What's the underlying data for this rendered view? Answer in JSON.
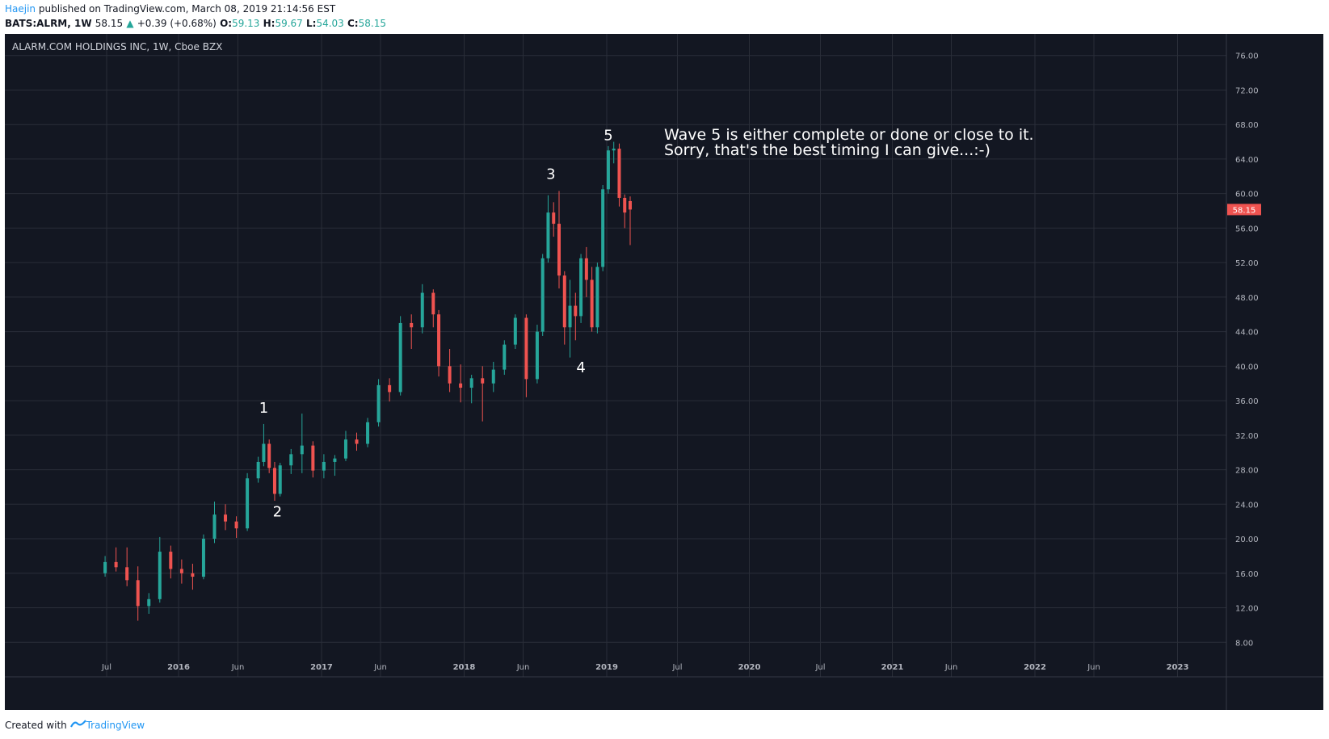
{
  "header": {
    "author": "Haejin",
    "published_text": " published on TradingView.com, March 08, 2019 21:14:56 EST",
    "symbol": "BATS:ALRM, 1W",
    "last": "58.15",
    "change_arrow": "▲",
    "change": "+0.39 (+0.68%)",
    "o_label": "O:",
    "o_value": "59.13",
    "h_label": "H:",
    "h_value": "59.67",
    "l_label": "L:",
    "l_value": "54.03",
    "c_label": "C:",
    "c_value": "58.15"
  },
  "footer": {
    "created_with": "Created with",
    "brand": "TradingView"
  },
  "colors": {
    "background": "#131722",
    "grid": "#2a2e39",
    "up": "#26a69a",
    "down": "#ef5350",
    "text": "#ffffff",
    "axis_text": "#b2b5be",
    "last_price_bg": "#ef5350"
  },
  "chart_data": {
    "type": "candlestick",
    "title": "ALARM.COM HOLDINGS INC, 1W, Cboe BZX",
    "x_tick_labels": [
      "Jul",
      "2016",
      "Jun",
      "2017",
      "Jun",
      "2018",
      "Jun",
      "2019",
      "Jul",
      "2020",
      "Jul",
      "2021",
      "Jun",
      "2022",
      "Jun",
      "2023"
    ],
    "x_tick_dates": [
      "2015-07-01",
      "2016-01-01",
      "2016-06-01",
      "2017-01-01",
      "2017-06-01",
      "2018-01-01",
      "2018-06-01",
      "2019-01-01",
      "2019-07-01",
      "2020-01-01",
      "2020-07-01",
      "2021-01-01",
      "2021-06-01",
      "2022-01-01",
      "2022-06-01",
      "2023-01-01"
    ],
    "y_tick_labels": [
      "8.00",
      "12.00",
      "16.00",
      "20.00",
      "24.00",
      "28.00",
      "32.00",
      "36.00",
      "40.00",
      "44.00",
      "48.00",
      "52.00",
      "56.00",
      "60.00",
      "64.00",
      "68.00",
      "72.00",
      "76.00"
    ],
    "ylim": [
      4.0,
      78.5
    ],
    "last_price": "58.15",
    "wave_labels": [
      {
        "label": "1",
        "date": "2016-08-06",
        "price": 34.6
      },
      {
        "label": "2",
        "date": "2016-09-10",
        "price": 22.6
      },
      {
        "label": "3",
        "date": "2018-08-11",
        "price": 61.7
      },
      {
        "label": "4",
        "date": "2018-10-27",
        "price": 39.3
      },
      {
        "label": "5",
        "date": "2019-01-05",
        "price": 66.2
      }
    ],
    "annotation": [
      "Wave 5 is either complete or done or close to it.",
      "Sorry, that's the best timing I can give...:-)"
    ],
    "series": [
      {
        "date": "2015-06-27",
        "open": 16.0,
        "high": 18.0,
        "low": 15.6,
        "close": 17.3
      },
      {
        "date": "2015-07-25",
        "open": 17.3,
        "high": 19.0,
        "low": 16.2,
        "close": 16.7
      },
      {
        "date": "2015-08-22",
        "open": 16.7,
        "high": 19.0,
        "low": 14.5,
        "close": 15.2
      },
      {
        "date": "2015-09-19",
        "open": 15.2,
        "high": 16.8,
        "low": 10.5,
        "close": 12.2
      },
      {
        "date": "2015-10-17",
        "open": 12.2,
        "high": 13.7,
        "low": 11.3,
        "close": 13.0
      },
      {
        "date": "2015-11-14",
        "open": 13.0,
        "high": 20.2,
        "low": 12.6,
        "close": 18.5
      },
      {
        "date": "2015-12-12",
        "open": 18.5,
        "high": 19.2,
        "low": 15.4,
        "close": 16.5
      },
      {
        "date": "2016-01-09",
        "open": 16.5,
        "high": 17.6,
        "low": 14.8,
        "close": 16.0
      },
      {
        "date": "2016-02-06",
        "open": 16.0,
        "high": 17.1,
        "low": 14.1,
        "close": 15.6
      },
      {
        "date": "2016-03-05",
        "open": 15.6,
        "high": 20.5,
        "low": 15.3,
        "close": 20.0
      },
      {
        "date": "2016-04-02",
        "open": 20.0,
        "high": 24.3,
        "low": 19.5,
        "close": 22.8
      },
      {
        "date": "2016-04-30",
        "open": 22.8,
        "high": 24.0,
        "low": 21.0,
        "close": 22.0
      },
      {
        "date": "2016-05-28",
        "open": 22.0,
        "high": 22.6,
        "low": 20.1,
        "close": 21.2
      },
      {
        "date": "2016-06-25",
        "open": 21.2,
        "high": 27.6,
        "low": 20.9,
        "close": 27.0
      },
      {
        "date": "2016-07-23",
        "open": 27.0,
        "high": 29.5,
        "low": 26.5,
        "close": 28.9
      },
      {
        "date": "2016-08-06",
        "open": 28.9,
        "high": 33.3,
        "low": 28.4,
        "close": 31.0
      },
      {
        "date": "2016-08-20",
        "open": 31.0,
        "high": 31.5,
        "low": 27.6,
        "close": 28.2
      },
      {
        "date": "2016-09-03",
        "open": 28.2,
        "high": 28.9,
        "low": 24.4,
        "close": 25.2
      },
      {
        "date": "2016-09-17",
        "open": 25.2,
        "high": 28.8,
        "low": 24.9,
        "close": 28.5
      },
      {
        "date": "2016-10-15",
        "open": 28.5,
        "high": 30.4,
        "low": 27.5,
        "close": 29.8
      },
      {
        "date": "2016-11-12",
        "open": 29.8,
        "high": 34.5,
        "low": 27.6,
        "close": 30.8
      },
      {
        "date": "2016-12-10",
        "open": 30.8,
        "high": 31.3,
        "low": 27.1,
        "close": 27.9
      },
      {
        "date": "2017-01-07",
        "open": 27.9,
        "high": 29.8,
        "low": 27.0,
        "close": 28.9
      },
      {
        "date": "2017-02-04",
        "open": 28.9,
        "high": 29.7,
        "low": 27.3,
        "close": 29.3
      },
      {
        "date": "2017-03-04",
        "open": 29.3,
        "high": 32.5,
        "low": 29.0,
        "close": 31.5
      },
      {
        "date": "2017-04-01",
        "open": 31.5,
        "high": 32.3,
        "low": 30.2,
        "close": 31.0
      },
      {
        "date": "2017-04-29",
        "open": 31.0,
        "high": 34.0,
        "low": 30.6,
        "close": 33.5
      },
      {
        "date": "2017-05-27",
        "open": 33.5,
        "high": 38.5,
        "low": 33.0,
        "close": 37.8
      },
      {
        "date": "2017-06-24",
        "open": 37.8,
        "high": 38.6,
        "low": 35.9,
        "close": 37.0
      },
      {
        "date": "2017-07-22",
        "open": 37.0,
        "high": 45.8,
        "low": 36.6,
        "close": 45.0
      },
      {
        "date": "2017-08-19",
        "open": 45.0,
        "high": 46.0,
        "low": 42.0,
        "close": 44.5
      },
      {
        "date": "2017-09-16",
        "open": 44.5,
        "high": 49.5,
        "low": 43.8,
        "close": 48.5
      },
      {
        "date": "2017-10-14",
        "open": 48.5,
        "high": 48.9,
        "low": 44.5,
        "close": 46.0
      },
      {
        "date": "2017-10-28",
        "open": 46.0,
        "high": 46.5,
        "low": 38.8,
        "close": 40.0
      },
      {
        "date": "2017-11-25",
        "open": 40.0,
        "high": 42.0,
        "low": 37.0,
        "close": 38.0
      },
      {
        "date": "2017-12-23",
        "open": 38.0,
        "high": 40.2,
        "low": 35.8,
        "close": 37.5
      },
      {
        "date": "2018-01-20",
        "open": 37.5,
        "high": 39.0,
        "low": 35.7,
        "close": 38.6
      },
      {
        "date": "2018-02-17",
        "open": 38.6,
        "high": 40.0,
        "low": 33.6,
        "close": 38.0
      },
      {
        "date": "2018-03-17",
        "open": 38.0,
        "high": 40.5,
        "low": 37.0,
        "close": 39.6
      },
      {
        "date": "2018-04-14",
        "open": 39.6,
        "high": 43.0,
        "low": 39.0,
        "close": 42.5
      },
      {
        "date": "2018-05-12",
        "open": 42.5,
        "high": 46.0,
        "low": 42.0,
        "close": 45.6
      },
      {
        "date": "2018-06-09",
        "open": 45.6,
        "high": 46.0,
        "low": 36.4,
        "close": 38.5
      },
      {
        "date": "2018-07-07",
        "open": 38.5,
        "high": 44.8,
        "low": 38.0,
        "close": 44.0
      },
      {
        "date": "2018-07-21",
        "open": 44.0,
        "high": 53.0,
        "low": 43.5,
        "close": 52.5
      },
      {
        "date": "2018-08-04",
        "open": 52.5,
        "high": 59.8,
        "low": 52.0,
        "close": 57.8
      },
      {
        "date": "2018-08-18",
        "open": 57.8,
        "high": 59.0,
        "low": 55.0,
        "close": 56.5
      },
      {
        "date": "2018-09-01",
        "open": 56.5,
        "high": 60.3,
        "low": 49.0,
        "close": 50.5
      },
      {
        "date": "2018-09-15",
        "open": 50.5,
        "high": 51.0,
        "low": 42.5,
        "close": 44.5
      },
      {
        "date": "2018-09-29",
        "open": 44.5,
        "high": 50.0,
        "low": 41.0,
        "close": 47.0
      },
      {
        "date": "2018-10-13",
        "open": 47.0,
        "high": 48.5,
        "low": 43.0,
        "close": 45.8
      },
      {
        "date": "2018-10-27",
        "open": 45.8,
        "high": 53.0,
        "low": 45.0,
        "close": 52.5
      },
      {
        "date": "2018-11-10",
        "open": 52.5,
        "high": 53.8,
        "low": 48.0,
        "close": 50.0
      },
      {
        "date": "2018-11-24",
        "open": 50.0,
        "high": 51.5,
        "low": 44.0,
        "close": 44.5
      },
      {
        "date": "2018-12-08",
        "open": 44.5,
        "high": 52.0,
        "low": 43.8,
        "close": 51.5
      },
      {
        "date": "2018-12-22",
        "open": 51.5,
        "high": 61.0,
        "low": 51.0,
        "close": 60.5
      },
      {
        "date": "2019-01-05",
        "open": 60.5,
        "high": 65.5,
        "low": 60.0,
        "close": 65.0
      },
      {
        "date": "2019-01-19",
        "open": 65.0,
        "high": 66.0,
        "low": 63.5,
        "close": 65.2
      },
      {
        "date": "2019-02-02",
        "open": 65.2,
        "high": 65.8,
        "low": 58.5,
        "close": 59.5
      },
      {
        "date": "2019-02-16",
        "open": 59.5,
        "high": 59.9,
        "low": 56.0,
        "close": 57.8
      },
      {
        "date": "2019-03-02",
        "open": 59.13,
        "high": 59.67,
        "low": 54.03,
        "close": 58.15
      }
    ]
  }
}
